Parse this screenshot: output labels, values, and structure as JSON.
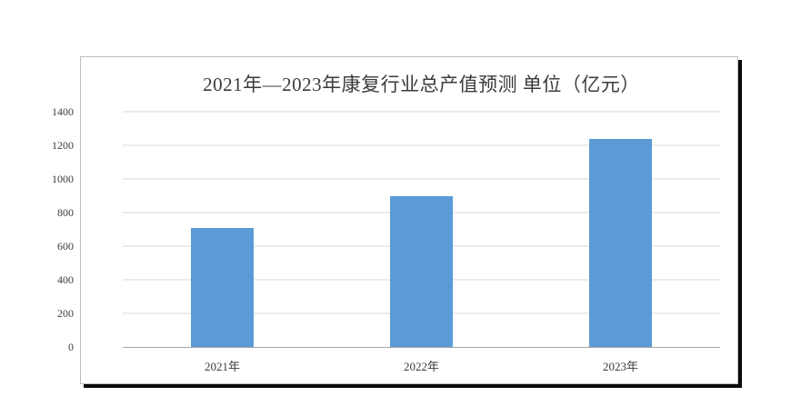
{
  "chart_data": {
    "type": "bar",
    "title": "2021年—2023年康复行业总产值预测 单位（亿元）",
    "categories": [
      "2021年",
      "2022年",
      "2023年"
    ],
    "values": [
      710,
      900,
      1240
    ],
    "ylim": [
      0,
      1400
    ],
    "yticks": [
      0,
      200,
      400,
      600,
      800,
      1000,
      1200,
      1400
    ],
    "grid": true,
    "legend": "none",
    "bar_color": "#5B9BD5",
    "gridline_color": "#d9d9d9",
    "axis_line_color": "#a6a6a6",
    "text_color": "#3b3b3b",
    "panel_border_color": "#bdbdbd",
    "panel_shadow_color": "#0a0a0a"
  }
}
